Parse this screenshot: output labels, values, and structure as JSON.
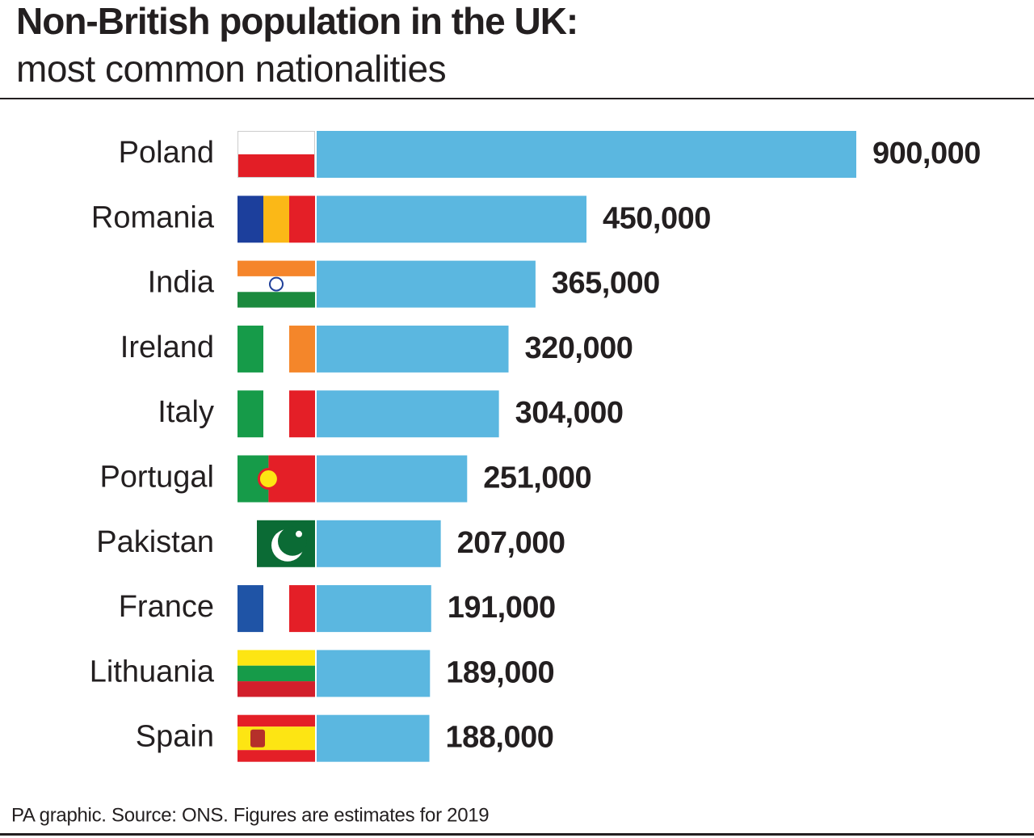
{
  "chart_data": {
    "type": "bar",
    "title": "Non-British population in the UK:",
    "subtitle": "most common nationalities",
    "categories": [
      "Poland",
      "Romania",
      "India",
      "Ireland",
      "Italy",
      "Portugal",
      "Pakistan",
      "France",
      "Lithuania",
      "Spain"
    ],
    "values": [
      900000,
      450000,
      365000,
      320000,
      304000,
      251000,
      207000,
      191000,
      189000,
      188000
    ],
    "value_labels": [
      "900,000",
      "450,000",
      "365,000",
      "320,000",
      "304,000",
      "251,000",
      "207,000",
      "191,000",
      "189,000",
      "188,000"
    ],
    "color": "#5bb7e0",
    "source": "PA graphic. Source: ONS. Figures are estimates for 2019"
  }
}
